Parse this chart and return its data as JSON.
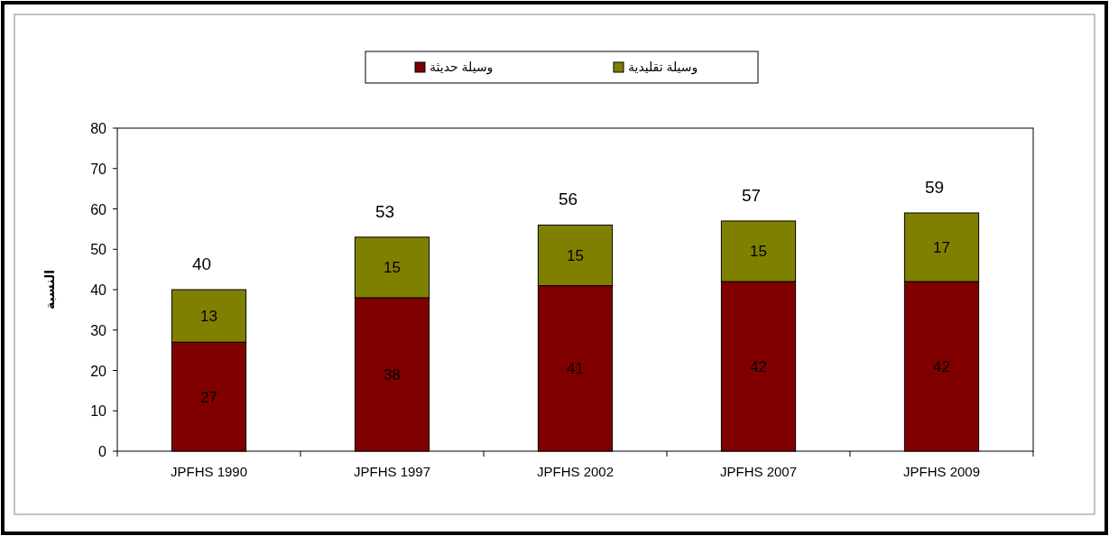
{
  "chart_data": {
    "type": "bar",
    "stacked": true,
    "ylabel": "النسبة",
    "categories": [
      "JPFHS 1990",
      "JPFHS 1997",
      "JPFHS 2002",
      "JPFHS 2007",
      "JPFHS 2009"
    ],
    "series": [
      {
        "name": "وسيلة حديثة",
        "color": "#800000",
        "values": [
          27,
          38,
          41,
          42,
          42
        ]
      },
      {
        "name": "وسيلة تقليدية",
        "color": "#808000",
        "values": [
          13,
          15,
          15,
          15,
          17
        ]
      }
    ],
    "ylim": [
      0,
      80
    ],
    "yticks": [
      0,
      10,
      20,
      30,
      40,
      50,
      60,
      70,
      80
    ],
    "data_labels": true,
    "totals": [
      "40",
      "53",
      "56",
      "57",
      "59"
    ],
    "grid": false,
    "legend": "top"
  }
}
